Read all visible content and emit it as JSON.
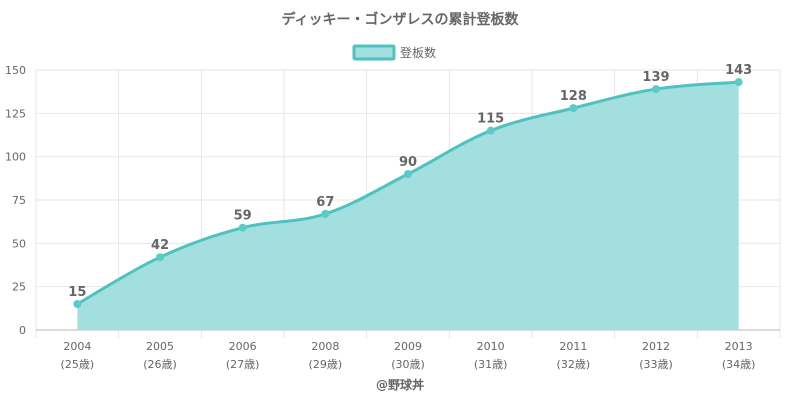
{
  "chart_data": {
    "type": "area",
    "title": "ディッキー・ゴンザレスの累計登板数",
    "categories": [
      "2004",
      "2005",
      "2006",
      "2008",
      "2009",
      "2010",
      "2011",
      "2012",
      "2013"
    ],
    "category_sublabels": [
      "(25歳)",
      "(26歳)",
      "(27歳)",
      "(29歳)",
      "(30歳)",
      "(31歳)",
      "(32歳)",
      "(33歳)",
      "(34歳)"
    ],
    "series": [
      {
        "name": "登板数",
        "values": [
          15,
          42,
          59,
          67,
          90,
          115,
          128,
          139,
          143
        ]
      }
    ],
    "ylim": [
      0,
      150
    ],
    "yticks": [
      0,
      25,
      50,
      75,
      100,
      125,
      150
    ],
    "grid": true,
    "legend_position": "top",
    "data_labels": true,
    "colors": {
      "line": "#4fc1bf",
      "fill": "#a3dfdf",
      "point": "#5ccac7",
      "grid": "#e6e6e6",
      "axis": "#cfcfcf",
      "text": "#666666",
      "title": "#666666"
    },
    "credit": "@野球丼"
  }
}
